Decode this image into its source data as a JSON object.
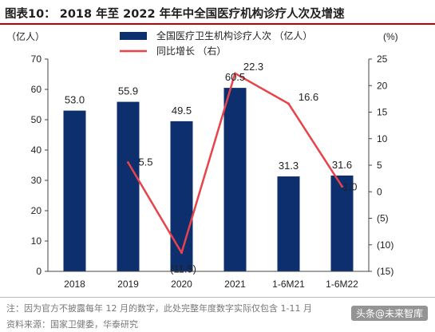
{
  "title": "图表10： 2018 年至 2022 年年中全国医疗机构诊疗人次及增速",
  "note": "注：因为官方不披露每年 12 月的数字，此处完整年度数字实际仅包含 1-11 月",
  "source": "资料来源：国家卫健委，华泰研究",
  "watermark": "头条@未来智库",
  "chart_data": {
    "type": "bar+line",
    "categories": [
      "2018",
      "2019",
      "2020",
      "2021",
      "1-6M21",
      "1-6M22"
    ],
    "left_axis": {
      "unit_label": "（亿人）",
      "range": [
        0,
        70
      ],
      "ticks": [
        "0",
        "10",
        "20",
        "30",
        "40",
        "50",
        "60",
        "70"
      ]
    },
    "right_axis": {
      "unit_label": "(%)",
      "range": [
        -15,
        25
      ],
      "ticks": [
        "(15)",
        "(10)",
        "(5)",
        "0",
        "5",
        "10",
        "15",
        "20",
        "25"
      ]
    },
    "series": [
      {
        "name": "全国医疗卫生机构诊疗人次 （亿人）",
        "type": "bar",
        "axis": "left",
        "color": "#0d2f6e",
        "values": [
          53.0,
          55.9,
          49.5,
          60.5,
          31.3,
          31.6
        ],
        "labels": [
          "53.0",
          "55.9",
          "49.5",
          "60.5",
          "31.3",
          "31.6"
        ]
      },
      {
        "name": "同比增长 （右）",
        "type": "line",
        "axis": "right",
        "color": "#e8434a",
        "values": [
          null,
          5.5,
          -11.5,
          22.3,
          16.6,
          1.0
        ],
        "labels": [
          "",
          "5.5",
          "(11.5)",
          "22.3",
          "16.6",
          "1.0"
        ]
      }
    ],
    "legend": "top-center",
    "grid": false
  }
}
